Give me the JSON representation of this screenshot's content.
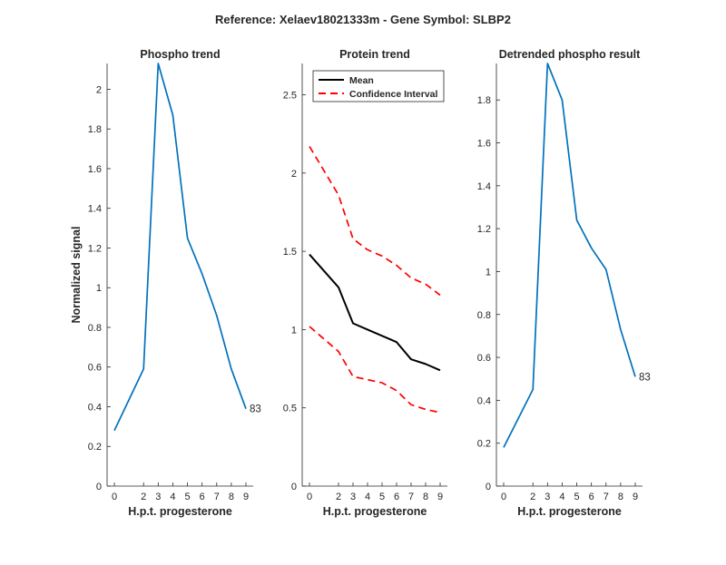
{
  "figure": {
    "title": "Reference:  Xelaev18021333m - Gene Symbol:  SLBP2"
  },
  "chart_data": [
    {
      "type": "line",
      "title": "Phospho trend",
      "xlabel": "H.p.t. progesterone",
      "ylabel": "Normalized signal",
      "x": [
        0,
        2,
        3,
        4,
        5,
        6,
        7,
        8,
        9
      ],
      "x_tick_labels": [
        "0",
        "2",
        "3",
        "4",
        "5",
        "6",
        "7",
        "8",
        "9"
      ],
      "ylim": [
        0,
        2.13
      ],
      "y_ticks": [
        0,
        0.2,
        0.4,
        0.6,
        0.8,
        1,
        1.2,
        1.4,
        1.6,
        1.8,
        2
      ],
      "y_tick_labels": [
        "0",
        "0.2",
        "0.4",
        "0.6",
        "0.8",
        "1",
        "1.2",
        "1.4",
        "1.6",
        "1.8",
        "2"
      ],
      "series": [
        {
          "values": [
            0.28,
            0.59,
            2.13,
            1.87,
            1.25,
            1.07,
            0.86,
            0.59,
            0.39
          ],
          "color": "#0072BD",
          "dash": ""
        }
      ],
      "end_label": "83"
    },
    {
      "type": "line",
      "title": "Protein trend",
      "xlabel": "H.p.t. progesterone",
      "ylabel": "",
      "x": [
        0,
        2,
        3,
        4,
        5,
        6,
        7,
        8,
        9
      ],
      "x_tick_labels": [
        "0",
        "2",
        "3",
        "4",
        "5",
        "6",
        "7",
        "8",
        "9"
      ],
      "ylim": [
        0,
        2.7
      ],
      "y_ticks": [
        0,
        0.5,
        1,
        1.5,
        2,
        2.5
      ],
      "y_tick_labels": [
        "0",
        "0.5",
        "1",
        "1.5",
        "2",
        "2.5"
      ],
      "series": [
        {
          "name": "Mean",
          "values": [
            1.48,
            1.27,
            1.04,
            1.0,
            0.96,
            0.92,
            0.81,
            0.78,
            0.74
          ],
          "color": "#000000",
          "dash": ""
        },
        {
          "name": "Confidence Interval",
          "values": [
            2.17,
            1.86,
            1.58,
            1.51,
            1.47,
            1.41,
            1.33,
            1.29,
            1.22
          ],
          "color": "#FF0000",
          "dash": "8,5"
        },
        {
          "values": [
            1.02,
            0.86,
            0.7,
            0.68,
            0.66,
            0.61,
            0.52,
            0.49,
            0.47
          ],
          "color": "#FF0000",
          "dash": "8,5"
        }
      ],
      "legend": {
        "placement": "top-left",
        "entries": [
          {
            "label": "Mean",
            "color": "#000000",
            "dash": ""
          },
          {
            "label": "Confidence Interval",
            "color": "#FF0000",
            "dash": "8,5"
          }
        ]
      }
    },
    {
      "type": "line",
      "title": "Detrended phospho result",
      "xlabel": "H.p.t. progesterone",
      "ylabel": "",
      "x": [
        0,
        2,
        3,
        4,
        5,
        6,
        7,
        8,
        9
      ],
      "x_tick_labels": [
        "0",
        "2",
        "3",
        "4",
        "5",
        "6",
        "7",
        "8",
        "9"
      ],
      "ylim": [
        0,
        1.97
      ],
      "y_ticks": [
        0,
        0.2,
        0.4,
        0.6,
        0.8,
        1,
        1.2,
        1.4,
        1.6,
        1.8
      ],
      "y_tick_labels": [
        "0",
        "0.2",
        "0.4",
        "0.6",
        "0.8",
        "1",
        "1.2",
        "1.4",
        "1.6",
        "1.8"
      ],
      "series": [
        {
          "values": [
            0.18,
            0.45,
            1.97,
            1.8,
            1.24,
            1.11,
            1.01,
            0.73,
            0.51
          ],
          "color": "#0072BD",
          "dash": ""
        }
      ],
      "end_label": "83"
    }
  ]
}
